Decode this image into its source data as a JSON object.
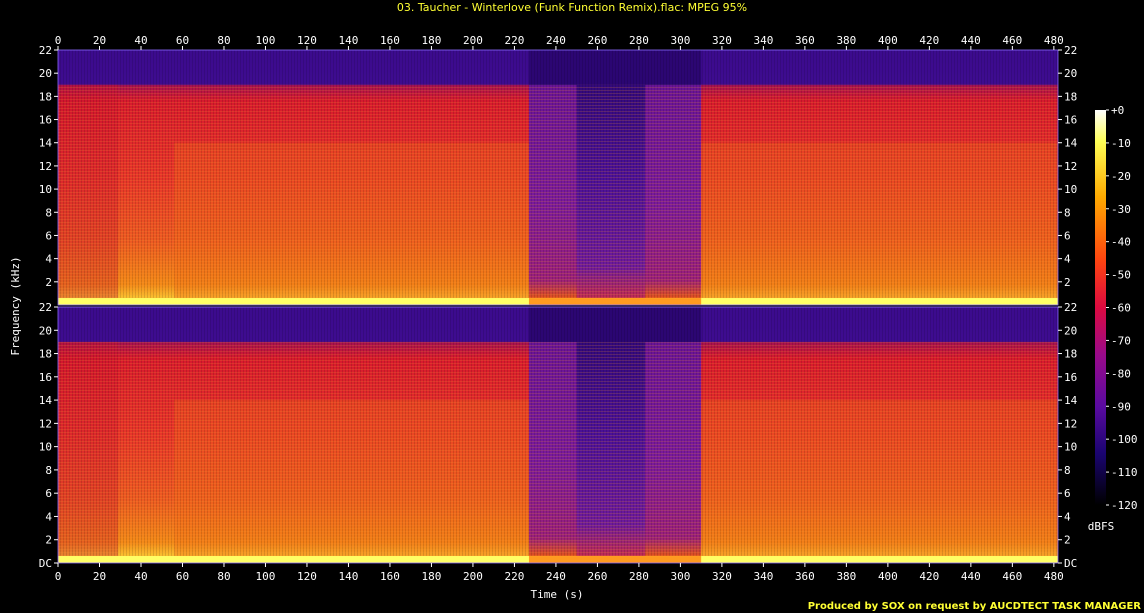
{
  "title": "03. Taucher - Winterlove (Funk Function Remix).flac: MPEG 95%",
  "footer": "Produced by SOX on request by AUCDTECT TASK MANAGER",
  "chart_data": {
    "type": "heatmap",
    "xlabel": "Time (s)",
    "ylabel": "Frequency (kHz)",
    "xlim": [
      0,
      482
    ],
    "ylim": [
      0,
      22
    ],
    "x_ticks": [
      "0",
      "20",
      "40",
      "60",
      "80",
      "100",
      "120",
      "140",
      "160",
      "180",
      "200",
      "220",
      "240",
      "260",
      "280",
      "300",
      "320",
      "340",
      "360",
      "380",
      "400",
      "420",
      "440",
      "460",
      "480"
    ],
    "y_ticks_top": [
      "2",
      "4",
      "6",
      "8",
      "10",
      "12",
      "14",
      "16",
      "18",
      "20",
      "22"
    ],
    "y_ticks_bottom": [
      "DC",
      "2",
      "4",
      "6",
      "8",
      "10",
      "12",
      "14",
      "16",
      "18",
      "20",
      "22"
    ],
    "channels": 2,
    "lowpass_cutoff_khz": 19,
    "quiet_section_s": [
      227,
      310
    ],
    "colorbar": {
      "label": "dBFS",
      "ticks": [
        "+0",
        "-10",
        "-20",
        "-30",
        "-40",
        "-50",
        "-60",
        "-70",
        "-80",
        "-90",
        "-100",
        "-110",
        "-120"
      ],
      "range": [
        -120,
        0
      ]
    },
    "colors": {
      "loud": "#ffff66",
      "mid": "#ff7700",
      "body": "#e81b2e",
      "cutoff": "#5a0f8c",
      "quiet": "#2a0670",
      "floor": "#000000"
    }
  }
}
